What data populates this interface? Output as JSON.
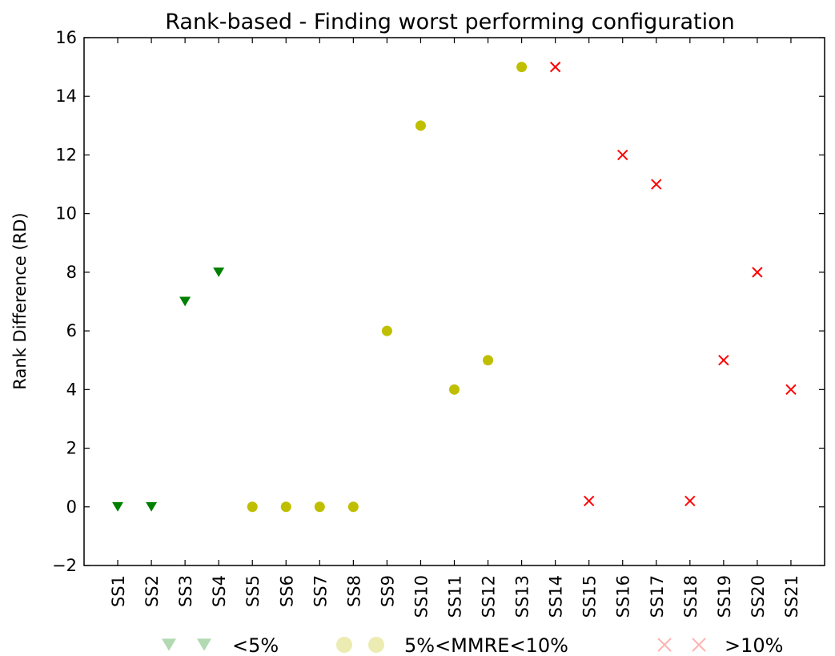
{
  "chart_data": {
    "type": "scatter",
    "title": "Rank-based  - Finding worst performing configuration",
    "xlabel": "",
    "ylabel": "Rank Difference (RD)",
    "ylim": [
      -2,
      16
    ],
    "yticks": [
      -2,
      0,
      2,
      4,
      6,
      8,
      10,
      12,
      14,
      16
    ],
    "ytick_labels": [
      "−2",
      "0",
      "2",
      "4",
      "6",
      "8",
      "10",
      "12",
      "14",
      "16"
    ],
    "categories": [
      "SS1",
      "SS2",
      "SS3",
      "SS4",
      "SS5",
      "SS6",
      "SS7",
      "SS8",
      "SS9",
      "SS10",
      "SS11",
      "SS12",
      "SS13",
      "SS14",
      "SS15",
      "SS16",
      "SS17",
      "SS18",
      "SS19",
      "SS20",
      "SS21"
    ],
    "grid": false,
    "legend_position": "bottom",
    "series": [
      {
        "name": "<5%",
        "marker": "triangle-down",
        "color": "#008000",
        "points": [
          [
            "SS1",
            0
          ],
          [
            "SS2",
            0
          ],
          [
            "SS3",
            7
          ],
          [
            "SS4",
            8
          ]
        ]
      },
      {
        "name": "5%<MMRE<10%",
        "marker": "circle",
        "color": "#bfbf00",
        "points": [
          [
            "SS5",
            0
          ],
          [
            "SS6",
            0
          ],
          [
            "SS7",
            0
          ],
          [
            "SS8",
            0
          ],
          [
            "SS9",
            6
          ],
          [
            "SS10",
            13
          ],
          [
            "SS11",
            4
          ],
          [
            "SS12",
            5
          ],
          [
            "SS13",
            15
          ]
        ]
      },
      {
        "name": ">10%",
        "marker": "x",
        "color": "#ff0000",
        "points": [
          [
            "SS14",
            15
          ],
          [
            "SS15",
            0.2
          ],
          [
            "SS16",
            12
          ],
          [
            "SS17",
            11
          ],
          [
            "SS18",
            0.2
          ],
          [
            "SS19",
            5
          ],
          [
            "SS20",
            8
          ],
          [
            "SS21",
            4
          ]
        ]
      }
    ]
  }
}
